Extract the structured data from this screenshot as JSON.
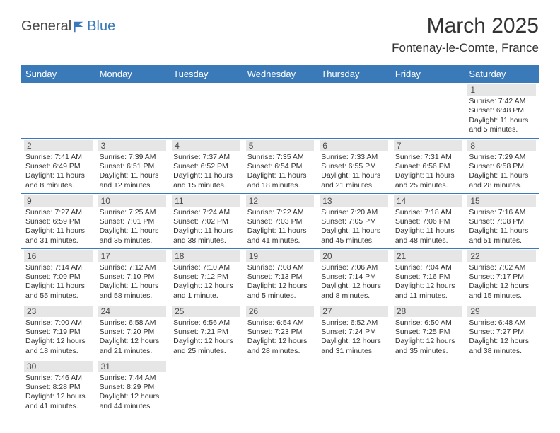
{
  "logo": {
    "text1": "General",
    "text2": "Blue"
  },
  "title": "March 2025",
  "location": "Fontenay-le-Comte, France",
  "colors": {
    "header_bg": "#3b7ab8",
    "daynum_bg": "#e6e6e6",
    "border": "#3b7ab8",
    "text": "#333333"
  },
  "weekdays": [
    "Sunday",
    "Monday",
    "Tuesday",
    "Wednesday",
    "Thursday",
    "Friday",
    "Saturday"
  ],
  "weeks": [
    [
      null,
      null,
      null,
      null,
      null,
      null,
      {
        "n": "1",
        "sr": "7:42 AM",
        "ss": "6:48 PM",
        "dl": "11 hours and 5 minutes."
      }
    ],
    [
      {
        "n": "2",
        "sr": "7:41 AM",
        "ss": "6:49 PM",
        "dl": "11 hours and 8 minutes."
      },
      {
        "n": "3",
        "sr": "7:39 AM",
        "ss": "6:51 PM",
        "dl": "11 hours and 12 minutes."
      },
      {
        "n": "4",
        "sr": "7:37 AM",
        "ss": "6:52 PM",
        "dl": "11 hours and 15 minutes."
      },
      {
        "n": "5",
        "sr": "7:35 AM",
        "ss": "6:54 PM",
        "dl": "11 hours and 18 minutes."
      },
      {
        "n": "6",
        "sr": "7:33 AM",
        "ss": "6:55 PM",
        "dl": "11 hours and 21 minutes."
      },
      {
        "n": "7",
        "sr": "7:31 AM",
        "ss": "6:56 PM",
        "dl": "11 hours and 25 minutes."
      },
      {
        "n": "8",
        "sr": "7:29 AM",
        "ss": "6:58 PM",
        "dl": "11 hours and 28 minutes."
      }
    ],
    [
      {
        "n": "9",
        "sr": "7:27 AM",
        "ss": "6:59 PM",
        "dl": "11 hours and 31 minutes."
      },
      {
        "n": "10",
        "sr": "7:25 AM",
        "ss": "7:01 PM",
        "dl": "11 hours and 35 minutes."
      },
      {
        "n": "11",
        "sr": "7:24 AM",
        "ss": "7:02 PM",
        "dl": "11 hours and 38 minutes."
      },
      {
        "n": "12",
        "sr": "7:22 AM",
        "ss": "7:03 PM",
        "dl": "11 hours and 41 minutes."
      },
      {
        "n": "13",
        "sr": "7:20 AM",
        "ss": "7:05 PM",
        "dl": "11 hours and 45 minutes."
      },
      {
        "n": "14",
        "sr": "7:18 AM",
        "ss": "7:06 PM",
        "dl": "11 hours and 48 minutes."
      },
      {
        "n": "15",
        "sr": "7:16 AM",
        "ss": "7:08 PM",
        "dl": "11 hours and 51 minutes."
      }
    ],
    [
      {
        "n": "16",
        "sr": "7:14 AM",
        "ss": "7:09 PM",
        "dl": "11 hours and 55 minutes."
      },
      {
        "n": "17",
        "sr": "7:12 AM",
        "ss": "7:10 PM",
        "dl": "11 hours and 58 minutes."
      },
      {
        "n": "18",
        "sr": "7:10 AM",
        "ss": "7:12 PM",
        "dl": "12 hours and 1 minute."
      },
      {
        "n": "19",
        "sr": "7:08 AM",
        "ss": "7:13 PM",
        "dl": "12 hours and 5 minutes."
      },
      {
        "n": "20",
        "sr": "7:06 AM",
        "ss": "7:14 PM",
        "dl": "12 hours and 8 minutes."
      },
      {
        "n": "21",
        "sr": "7:04 AM",
        "ss": "7:16 PM",
        "dl": "12 hours and 11 minutes."
      },
      {
        "n": "22",
        "sr": "7:02 AM",
        "ss": "7:17 PM",
        "dl": "12 hours and 15 minutes."
      }
    ],
    [
      {
        "n": "23",
        "sr": "7:00 AM",
        "ss": "7:19 PM",
        "dl": "12 hours and 18 minutes."
      },
      {
        "n": "24",
        "sr": "6:58 AM",
        "ss": "7:20 PM",
        "dl": "12 hours and 21 minutes."
      },
      {
        "n": "25",
        "sr": "6:56 AM",
        "ss": "7:21 PM",
        "dl": "12 hours and 25 minutes."
      },
      {
        "n": "26",
        "sr": "6:54 AM",
        "ss": "7:23 PM",
        "dl": "12 hours and 28 minutes."
      },
      {
        "n": "27",
        "sr": "6:52 AM",
        "ss": "7:24 PM",
        "dl": "12 hours and 31 minutes."
      },
      {
        "n": "28",
        "sr": "6:50 AM",
        "ss": "7:25 PM",
        "dl": "12 hours and 35 minutes."
      },
      {
        "n": "29",
        "sr": "6:48 AM",
        "ss": "7:27 PM",
        "dl": "12 hours and 38 minutes."
      }
    ],
    [
      {
        "n": "30",
        "sr": "7:46 AM",
        "ss": "8:28 PM",
        "dl": "12 hours and 41 minutes."
      },
      {
        "n": "31",
        "sr": "7:44 AM",
        "ss": "8:29 PM",
        "dl": "12 hours and 44 minutes."
      },
      null,
      null,
      null,
      null,
      null
    ]
  ],
  "labels": {
    "sunrise": "Sunrise:",
    "sunset": "Sunset:",
    "daylight": "Daylight:"
  }
}
